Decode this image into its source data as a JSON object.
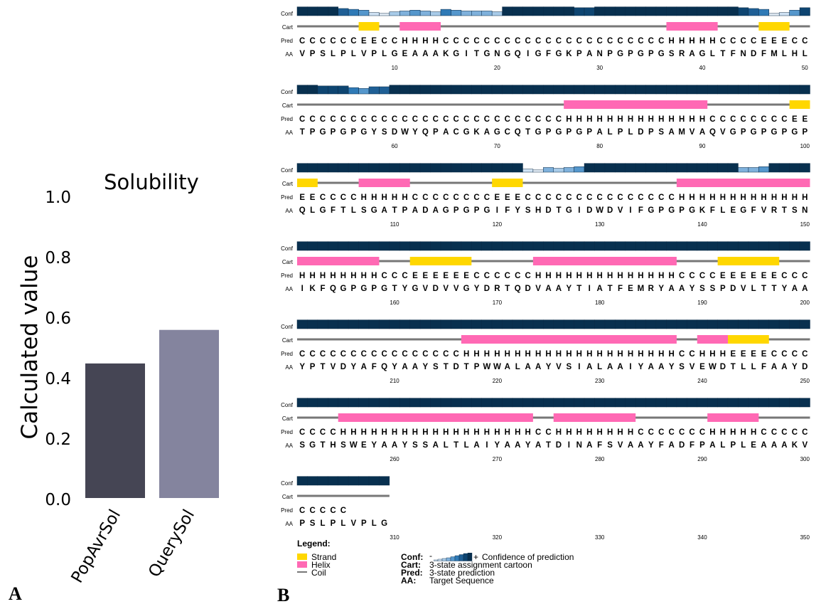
{
  "panel_labels": {
    "a": "A",
    "b": "B"
  },
  "chart_data": [
    {
      "type": "bar",
      "title": "Solubility",
      "ylabel": "Calculated value",
      "xlabel": "",
      "categories": [
        "PopAvrSol",
        "QuerySol"
      ],
      "values": [
        0.445,
        0.556
      ],
      "colors": [
        "#454554",
        "#84849e"
      ],
      "ylim": [
        0,
        1.0
      ],
      "yticks": [
        "0.0",
        "0.2",
        "0.4",
        "0.6",
        "0.8",
        "1.0"
      ],
      "grid": false
    },
    {
      "type": "table",
      "title": "",
      "row_labels": {
        "conf": "Conf",
        "cart": "Cart",
        "pred": "Pred",
        "aa": "AA"
      },
      "sequence": "VPSLPLVPLGEAAAKGITGNGQIGFGKPANPGPGPGSRAGLTFNDFMLHLTPGPGPGYSDWYQPACGKAGCQTGPGPGPALPLDPSAMVAQVGPGPGPGPQLGFTLSGATPADAGPGPGIFYSHDTGIDWDVIFGPGPGKFLEGFVRTSNIKFQGPGPGTYGVDVVGYDRTQDVAAYTIATFEMRYAAYSSPDVLTTYAAYPTVDYAFQYAAYSTDTPWWALAAYVSIALAAIYAAYSVEWDTLLFAAYDSGTHSWEYAAYSSALTLAIYAAYATDINAFSVAAYFADFPALPLEAAAKVPSLPLVPLG",
      "prediction": "CCCCCCEECCHHHHCCCCCCCCCCCCCCCCCCCCCCHHHHHCCCCEEECCCCCCCCCCCCCCCCCCCCCCCCCCCCHHHHHHHHHHHHHHCCCCCCCCEEEECCCCHHHHHCCCCCCCCEEECCCCCCCCCCCCCCCHHHHHHHHHHHHHHHHHHHHHCCCEEEEEECCCCCCHHHHHHHHHHHHHHCCCCEEEEEECCCCCCCCCCCCCCCCCCCHHHHHHHHHHHHHHHHHHHHHCCHHHEEEECCCCCCCCHHHHHHHHHHHHHHHHHHHCCHHHHHHHHCCCCCCCHHHHHCCCCCCCCCC",
      "confidence": "9999765213454365444399999998899999999999999876125899888657799999999999999999999999999999999999999999999999999999999999999921434599999999999999944599999999999999999999999999999999999999999999999999999999999999999999999999999999999999999999999999999999999999999999999999999999999999999999999999999999999999999999999999999999999999999999999",
      "position_ticks": [
        "10",
        "20",
        "30",
        "40",
        "50",
        "60",
        "70",
        "80",
        "90",
        "100",
        "110",
        "120",
        "130",
        "140",
        "150",
        "160",
        "170",
        "180",
        "190",
        "200",
        "210",
        "220",
        "230",
        "240",
        "250",
        "260",
        "270",
        "280",
        "290",
        "300",
        "310",
        "320",
        "330",
        "340",
        "350"
      ],
      "legend": {
        "title": "Legend:",
        "items": [
          {
            "name": "Strand",
            "color": "#ffd700"
          },
          {
            "name": "Helix",
            "color": "#ff69b4"
          },
          {
            "name": "Coil",
            "color": "#777777"
          }
        ],
        "conf_minus": "-",
        "conf_plus": "+",
        "conf_desc": "Confidence of prediction",
        "entries": [
          {
            "key": "Conf:",
            "desc": "Confidence of prediction"
          },
          {
            "key": "Cart:",
            "desc": "3-state assignment cartoon"
          },
          {
            "key": "Pred:",
            "desc": "3-state prediction"
          },
          {
            "key": "AA:",
            "desc": "Target Sequence"
          }
        ]
      }
    }
  ]
}
